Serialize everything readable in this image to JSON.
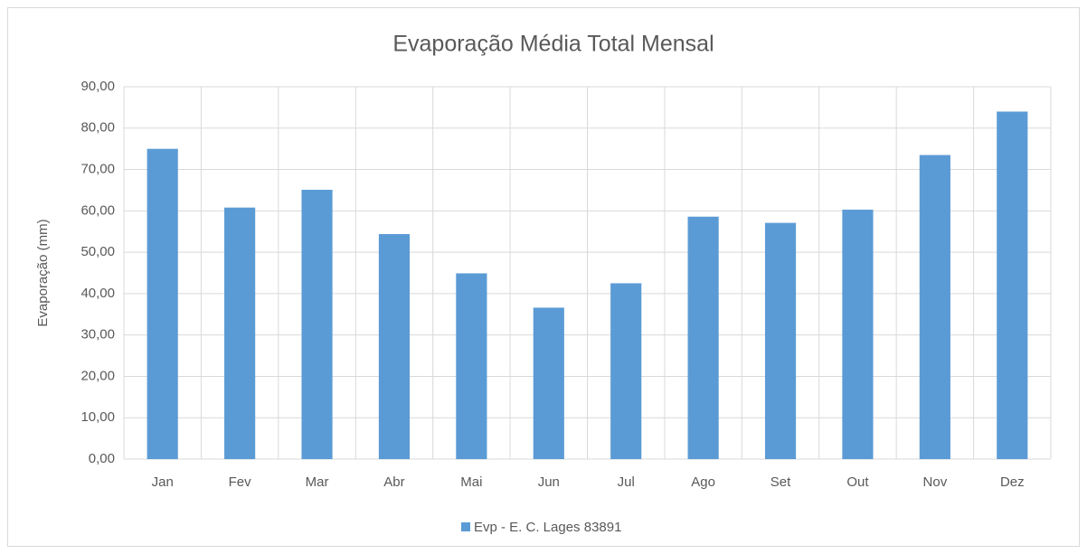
{
  "chart_data": {
    "type": "bar",
    "title": "Evaporação Média Total Mensal",
    "y_label": "Evaporação (mm)",
    "categories": [
      "Jan",
      "Fev",
      "Mar",
      "Abr",
      "Mai",
      "Jun",
      "Jul",
      "Ago",
      "Set",
      "Out",
      "Nov",
      "Dez"
    ],
    "series": [
      {
        "name": "Evp - E. C. Lages 83891",
        "color": "#5b9bd5",
        "values": [
          75.0,
          60.8,
          65.1,
          54.4,
          44.9,
          36.6,
          42.5,
          58.6,
          57.1,
          60.3,
          73.5,
          84.0
        ]
      }
    ],
    "ylim": [
      0,
      90
    ],
    "yticks": [
      {
        "value": 0,
        "label": "0,00"
      },
      {
        "value": 10,
        "label": "10,00"
      },
      {
        "value": 20,
        "label": "20,00"
      },
      {
        "value": 30,
        "label": "30,00"
      },
      {
        "value": 40,
        "label": "40,00"
      },
      {
        "value": 50,
        "label": "50,00"
      },
      {
        "value": 60,
        "label": "60,00"
      },
      {
        "value": 70,
        "label": "70,00"
      },
      {
        "value": 80,
        "label": "80,00"
      },
      {
        "value": 90,
        "label": "90,00"
      }
    ],
    "grid": true,
    "legend": "bottom"
  }
}
